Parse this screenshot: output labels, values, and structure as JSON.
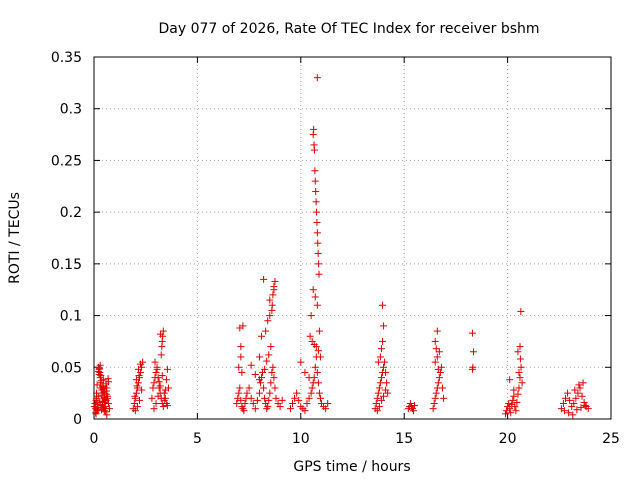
{
  "chart_data": {
    "type": "scatter",
    "title": "Day 077 of 2026, Rate Of TEC Index for receiver bshm",
    "xlabel": "GPS time / hours",
    "ylabel": "ROTI / TECUs",
    "xlim": [
      0,
      25
    ],
    "ylim": [
      0,
      0.35
    ],
    "xticks": [
      0,
      5,
      10,
      15,
      20,
      25
    ],
    "yticks": [
      0,
      0.05,
      0.1,
      0.15,
      0.2,
      0.25,
      0.3,
      0.35
    ],
    "grid": true,
    "marker": "+",
    "color": "#e00000",
    "series": [
      {
        "x": [
          0.02,
          0.05,
          0.08,
          0.1,
          0.12,
          0.15,
          0.18,
          0.2,
          0.22,
          0.25,
          0.28,
          0.3,
          0.32,
          0.35,
          0.38,
          0.4,
          0.42,
          0.45,
          0.48,
          0.5,
          0.52,
          0.55,
          0.58,
          0.6,
          0.62,
          0.65,
          0.7,
          0.75,
          0.1,
          0.2,
          0.3,
          0.4,
          0.5,
          0.6,
          0.15,
          0.25,
          0.35,
          0.45,
          0.55,
          0.08,
          0.18,
          0.28,
          0.38,
          0.48,
          0.58,
          0.68,
          0.22,
          0.33,
          0.44,
          0.12,
          0.5,
          0.62,
          0.7,
          0.3,
          0.26,
          0.42,
          0.56,
          0.66,
          0.36,
          0.46
        ],
        "y": [
          0.012,
          0.015,
          0.01,
          0.018,
          0.02,
          0.008,
          0.014,
          0.022,
          0.05,
          0.048,
          0.045,
          0.04,
          0.035,
          0.03,
          0.028,
          0.025,
          0.032,
          0.038,
          0.02,
          0.016,
          0.012,
          0.01,
          0.018,
          0.024,
          0.03,
          0.02,
          0.015,
          0.01,
          0.005,
          0.009,
          0.013,
          0.017,
          0.021,
          0.027,
          0.033,
          0.043,
          0.037,
          0.029,
          0.019,
          0.006,
          0.011,
          0.016,
          0.023,
          0.026,
          0.034,
          0.039,
          0.046,
          0.042,
          0.031,
          0.025,
          0.008,
          0.004,
          0.036,
          0.052,
          0.049,
          0.014,
          0.007,
          0.022,
          0.009,
          0.011
        ]
      },
      {
        "x": [
          1.9,
          1.95,
          2.0,
          2.05,
          2.1,
          2.15,
          2.2,
          2.25,
          2.3,
          2.35,
          2.0,
          2.1,
          2.2,
          2.3,
          2.05,
          2.15,
          2.25,
          1.98,
          2.08,
          2.18
        ],
        "y": [
          0.01,
          0.015,
          0.02,
          0.025,
          0.03,
          0.035,
          0.04,
          0.045,
          0.05,
          0.055,
          0.008,
          0.012,
          0.018,
          0.028,
          0.038,
          0.048,
          0.053,
          0.022,
          0.032,
          0.042
        ]
      },
      {
        "x": [
          2.8,
          2.85,
          2.9,
          2.95,
          3.0,
          3.05,
          3.1,
          3.15,
          3.2,
          3.25,
          3.3,
          3.35,
          3.4,
          3.45,
          3.5,
          3.55,
          3.6,
          2.9,
          3.0,
          3.1,
          3.2,
          3.3,
          3.4,
          3.5,
          3.25,
          3.28,
          3.3,
          3.32,
          3.22,
          3.35,
          2.95,
          3.05,
          3.15,
          3.45,
          3.55
        ],
        "y": [
          0.02,
          0.03,
          0.035,
          0.04,
          0.045,
          0.05,
          0.04,
          0.03,
          0.025,
          0.02,
          0.015,
          0.012,
          0.018,
          0.028,
          0.038,
          0.048,
          0.03,
          0.01,
          0.015,
          0.022,
          0.032,
          0.042,
          0.025,
          0.015,
          0.062,
          0.07,
          0.075,
          0.08,
          0.082,
          0.085,
          0.055,
          0.048,
          0.036,
          0.02,
          0.013
        ]
      },
      {
        "x": [
          6.9,
          6.95,
          7.0,
          7.05,
          7.1,
          7.15,
          7.2,
          7.25,
          7.3,
          7.35,
          7.4,
          7.5,
          7.6,
          7.7,
          7.8,
          7.9,
          8.0,
          8.05,
          8.1,
          8.15,
          8.2,
          8.25,
          8.3,
          8.35,
          8.4,
          8.45,
          8.5,
          8.55,
          8.6,
          8.65,
          8.7,
          8.75,
          8.8,
          8.9,
          9.0,
          9.1,
          7.0,
          7.1,
          7.2,
          8.0,
          8.1,
          8.3,
          8.4,
          8.5,
          8.6,
          8.62,
          8.65,
          8.7,
          8.75,
          8.55,
          8.45,
          8.35,
          8.2,
          7.05,
          7.1,
          7.15,
          7.6,
          7.8,
          8.0,
          8.25,
          8.5,
          8.7
        ],
        "y": [
          0.015,
          0.02,
          0.025,
          0.03,
          0.018,
          0.012,
          0.01,
          0.008,
          0.015,
          0.02,
          0.025,
          0.03,
          0.02,
          0.015,
          0.01,
          0.018,
          0.025,
          0.035,
          0.04,
          0.045,
          0.03,
          0.02,
          0.015,
          0.01,
          0.012,
          0.018,
          0.025,
          0.035,
          0.045,
          0.05,
          0.04,
          0.03,
          0.02,
          0.015,
          0.012,
          0.018,
          0.05,
          0.07,
          0.09,
          0.06,
          0.08,
          0.085,
          0.095,
          0.1,
          0.105,
          0.11,
          0.12,
          0.125,
          0.133,
          0.07,
          0.062,
          0.056,
          0.135,
          0.088,
          0.06,
          0.045,
          0.052,
          0.043,
          0.038,
          0.048,
          0.115,
          0.128
        ]
      },
      {
        "x": [
          9.5,
          9.6,
          9.7,
          9.8,
          9.9,
          10.0,
          10.1,
          10.2,
          10.3,
          10.4,
          10.5,
          10.55,
          10.6,
          10.65,
          10.7,
          10.75,
          10.8,
          10.85,
          10.9,
          10.95,
          11.0,
          11.1,
          11.2,
          11.3,
          10.6,
          10.62,
          10.64,
          10.66,
          10.68,
          10.7,
          10.72,
          10.74,
          10.76,
          10.78,
          10.8,
          10.82,
          10.84,
          10.86,
          10.88,
          10.6,
          10.7,
          10.8,
          10.5,
          10.9,
          10.45,
          10.55,
          10.65,
          10.75,
          10.85,
          10.95,
          10.0,
          10.2,
          10.4
        ],
        "y": [
          0.01,
          0.015,
          0.02,
          0.025,
          0.018,
          0.012,
          0.01,
          0.008,
          0.015,
          0.02,
          0.025,
          0.03,
          0.035,
          0.04,
          0.05,
          0.06,
          0.045,
          0.035,
          0.025,
          0.02,
          0.015,
          0.012,
          0.01,
          0.015,
          0.275,
          0.28,
          0.265,
          0.26,
          0.24,
          0.23,
          0.22,
          0.21,
          0.2,
          0.19,
          0.18,
          0.17,
          0.16,
          0.15,
          0.14,
          0.125,
          0.118,
          0.11,
          0.1,
          0.085,
          0.08,
          0.075,
          0.072,
          0.07,
          0.066,
          0.06,
          0.055,
          0.045,
          0.04
        ]
      },
      {
        "x": [
          10.8
        ],
        "y": [
          0.33
        ]
      },
      {
        "x": [
          13.6,
          13.65,
          13.7,
          13.75,
          13.8,
          13.85,
          13.9,
          13.95,
          14.0,
          14.05,
          14.1,
          14.15,
          14.2,
          13.7,
          13.8,
          13.9,
          14.0,
          14.1,
          13.85,
          13.9,
          13.95,
          14.0,
          13.75,
          13.95
        ],
        "y": [
          0.01,
          0.015,
          0.02,
          0.025,
          0.03,
          0.035,
          0.04,
          0.045,
          0.05,
          0.055,
          0.045,
          0.035,
          0.025,
          0.008,
          0.012,
          0.018,
          0.022,
          0.028,
          0.06,
          0.068,
          0.075,
          0.09,
          0.055,
          0.11
        ]
      },
      {
        "x": [
          15.2,
          15.25,
          15.3,
          15.35,
          15.4,
          15.45,
          15.5
        ],
        "y": [
          0.01,
          0.012,
          0.015,
          0.012,
          0.01,
          0.008,
          0.013
        ]
      },
      {
        "x": [
          16.4,
          16.45,
          16.5,
          16.55,
          16.6,
          16.65,
          16.7,
          16.75,
          16.8,
          16.85,
          16.9,
          16.5,
          16.6,
          16.7,
          16.5,
          16.6,
          16.55,
          16.65
        ],
        "y": [
          0.01,
          0.015,
          0.02,
          0.025,
          0.03,
          0.035,
          0.04,
          0.045,
          0.05,
          0.03,
          0.02,
          0.055,
          0.06,
          0.065,
          0.075,
          0.085,
          0.068,
          0.048
        ]
      },
      {
        "x": [
          18.3,
          18.35,
          18.3,
          18.32
        ],
        "y": [
          0.048,
          0.065,
          0.083,
          0.05
        ]
      },
      {
        "x": [
          19.9,
          19.95,
          20.0,
          20.05,
          20.1,
          20.15,
          20.2,
          20.25,
          20.3,
          20.35,
          20.4,
          20.45,
          20.5,
          20.55,
          20.6,
          20.65,
          20.7,
          20.5,
          20.6,
          20.62,
          20.64,
          20.1,
          20.3,
          20.55
        ],
        "y": [
          0.005,
          0.008,
          0.012,
          0.015,
          0.01,
          0.006,
          0.014,
          0.018,
          0.022,
          0.012,
          0.008,
          0.016,
          0.024,
          0.03,
          0.04,
          0.05,
          0.035,
          0.065,
          0.07,
          0.058,
          0.104,
          0.038,
          0.028,
          0.045
        ]
      },
      {
        "x": [
          22.6,
          22.7,
          22.8,
          22.9,
          23.0,
          23.1,
          23.2,
          23.3,
          23.4,
          23.5,
          23.6,
          23.7,
          23.8,
          23.9,
          22.75,
          22.95,
          23.15,
          23.35,
          23.55,
          23.75,
          23.25,
          23.45,
          23.65
        ],
        "y": [
          0.01,
          0.015,
          0.02,
          0.025,
          0.018,
          0.012,
          0.015,
          0.02,
          0.025,
          0.03,
          0.022,
          0.016,
          0.012,
          0.01,
          0.008,
          0.006,
          0.004,
          0.009,
          0.011,
          0.013,
          0.028,
          0.033,
          0.035
        ]
      }
    ]
  }
}
